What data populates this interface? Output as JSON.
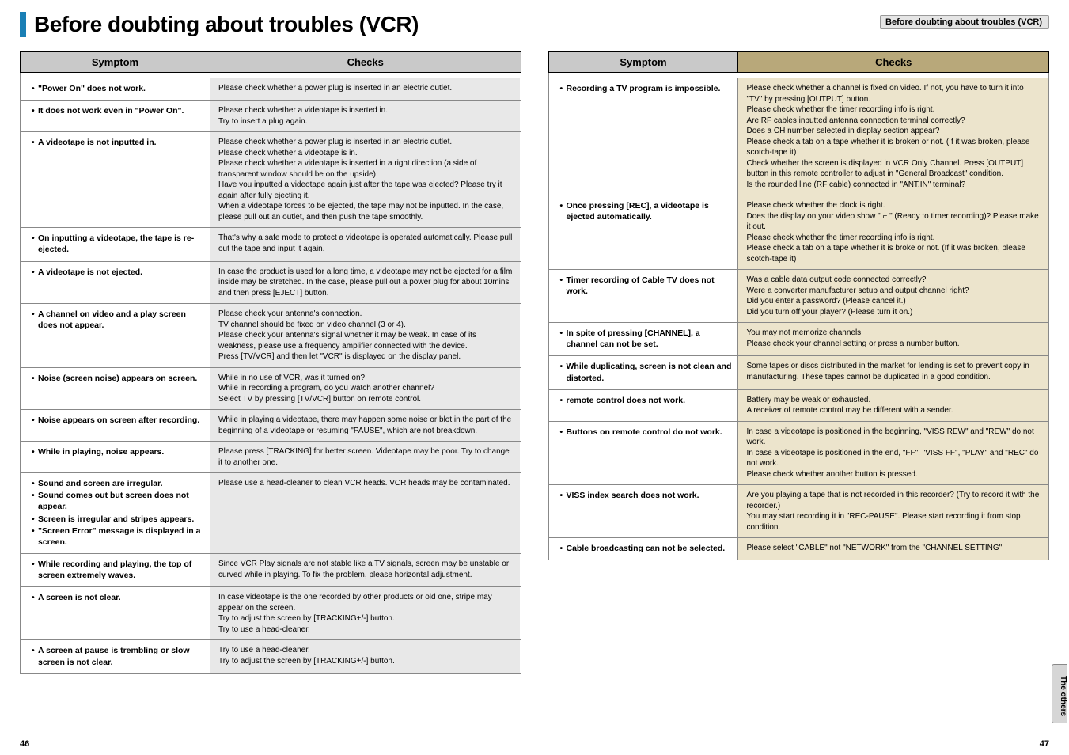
{
  "title": "Before doubting about troubles (VCR)",
  "header_tab": "Before doubting about troubles (VCR)",
  "side_tab": "The others",
  "page_left": "46",
  "page_right": "47",
  "headers": {
    "symptom": "Symptom",
    "checks": "Checks"
  },
  "colors": {
    "accent_blue": "#1a7fb5",
    "header_gray": "#c9c9c9",
    "header_tan": "#b8a87a",
    "cell_gray": "#e8e8e8",
    "cell_tan": "#ece4cc"
  },
  "left": [
    {
      "symptom": "\"Power On\" does not work.",
      "checks": "Please check whether a power plug is inserted in an electric outlet."
    },
    {
      "symptom": "It does not work even in \"Power On\".",
      "checks": "Please check whether a videotape is inserted in.\nTry to insert a plug again."
    },
    {
      "symptom": "A videotape is not inputted in.",
      "checks": "Please check whether a power plug is inserted in an electric outlet.\nPlease check whether a videotape is in.\nPlease check whether a videotape is inserted in a right direction (a side of transparent window should be on the upside)\nHave you inputted a videotape again just after the tape was ejected? Please try it again after fully ejecting it.\nWhen a videotape forces to be ejected, the tape may not be inputted. In the case, please pull out an outlet, and then push the tape smoothly."
    },
    {
      "symptom": "On inputting a videotape, the tape is re-ejected.",
      "checks": "That's why a safe mode to protect a videotape is operated automatically. Please pull out the tape and input it again."
    },
    {
      "symptom": "A videotape is not ejected.",
      "checks": "In case the product is used for a long time, a videotape may not be ejected for a film inside may be stretched. In the case, please pull out a power plug for about 10mins and then press [EJECT] button."
    },
    {
      "symptom": "A channel on video and a play screen does not appear.",
      "checks": "Please check your antenna's connection.\nTV channel should be fixed on video channel (3 or 4).\nPlease check your antenna's signal whether it may be weak. In case of its weakness, please use a frequency amplifier connected with the device.\nPress [TV/VCR] and then let \"VCR\" is displayed on the display panel."
    },
    {
      "symptom": "Noise (screen noise) appears on screen.",
      "checks": "While in no use of VCR, was it turned on?\nWhile in recording a program, do you watch another channel?\nSelect TV by pressing [TV/VCR] button on remote control."
    },
    {
      "symptom": "Noise appears on screen after recording.",
      "checks": "While in playing a videotape, there may happen some noise or blot in the part of the beginning of a videotape or resuming \"PAUSE\", which are not breakdown."
    },
    {
      "symptom": "While in playing, noise appears.",
      "checks": "Please press [TRACKING] for better screen. Videotape may be poor. Try to change it to another one."
    },
    {
      "symptom_list": [
        "Sound and screen are irregular.",
        "Sound comes out but screen does not appear.",
        "Screen is irregular and stripes appears.",
        "\"Screen Error\" message is displayed in a screen."
      ],
      "checks": "Please use a head-cleaner to clean VCR heads. VCR heads may be contaminated."
    },
    {
      "symptom": "While recording and playing, the top of screen extremely waves.",
      "checks": "Since VCR Play signals are not stable like a TV signals, screen may be unstable or curved while in playing. To fix the problem, please horizontal adjustment."
    },
    {
      "symptom": "A screen is not clear.",
      "checks": "In case videotape is the one recorded by other products or old one, stripe may appear on the screen.\nTry to adjust the screen by [TRACKING+/-] button.\nTry to use a head-cleaner."
    },
    {
      "symptom": "A screen at pause is trembling or slow screen is not clear.",
      "checks": "Try to use a head-cleaner.\nTry to adjust the screen by [TRACKING+/-] button."
    }
  ],
  "right": [
    {
      "symptom": "Recording a TV program is impossible.",
      "checks": "Please check whether a channel is fixed on video. If not, you have to turn it into \"TV\" by pressing [OUTPUT] button.\nPlease check whether the timer recording info is right.\nAre RF cables inputted antenna connection terminal correctly?\nDoes a CH number selected in display section appear?\nPlease check a tab on a tape whether it is broken or not. (If it was broken, please scotch-tape it)\nCheck whether the screen is displayed in VCR Only  Channel. Press [OUTPUT] button in this remote controller to adjust in \"General Broadcast\" condition.\nIs the rounded line (RF cable) connected in \"ANT.IN\" terminal?"
    },
    {
      "symptom": "Once pressing [REC], a videotape is ejected automatically.",
      "checks": "Please check whether the clock is right.\nDoes the display on your video show \" ⌐ \" (Ready to timer recording)? Please make it out.\nPlease check whether the timer recording info is right.\nPlease check a tab on a tape whether it is broke or not. (If it was broken, please scotch-tape it)"
    },
    {
      "symptom": "Timer recording of Cable TV does not work.",
      "checks": "Was a cable data output code connected correctly?\nWere a converter manufacturer setup and output channel right?\nDid you enter a password? (Please cancel it.)\nDid you turn off your player? (Please turn it on.)"
    },
    {
      "symptom": "In spite of pressing [CHANNEL], a channel can not be set.",
      "checks": "You may not memorize channels.\nPlease check your channel setting or press a number button."
    },
    {
      "symptom": "While duplicating, screen is not clean and distorted.",
      "checks": "Some tapes or discs distributed in the  market for lending is set to prevent copy  in  manufacturing. These tapes cannot be duplicated in a good condition."
    },
    {
      "symptom": "remote control does not work.",
      "checks": "Battery may be weak or exhausted.\nA receiver of remote control may be different with a sender."
    },
    {
      "symptom": "Buttons on remote control do not work.",
      "checks": "In case a videotape is positioned in the beginning, \"VISS REW\" and \"REW\" do not work.\nIn case a videotape is positioned in the end, \"FF\", \"VISS FF\", \"PLAY\" and \"REC\" do not work.\nPlease check whether another button is pressed."
    },
    {
      "symptom": "VISS index search does not work.",
      "checks": "Are you playing a tape that is not recorded in this recorder?  (Try to record it with the recorder.)\nYou may start recording it in \"REC-PAUSE\". Please start recording it from stop condition."
    },
    {
      "symptom": "Cable broadcasting can not be selected.",
      "checks": "Please select \"CABLE\" not \"NETWORK\" from the \"CHANNEL SETTING\"."
    }
  ]
}
